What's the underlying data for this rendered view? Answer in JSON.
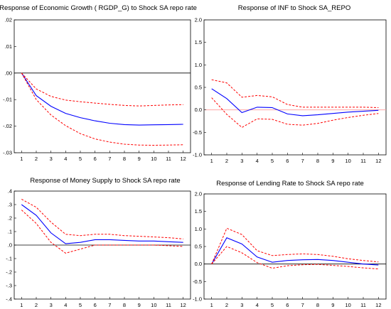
{
  "chart_data": [
    {
      "type": "line",
      "title": "Response of  Economic Growth ( RGDP_G)  to Shock SA repo rate",
      "xlabel": "",
      "ylabel": "",
      "x": [
        1,
        2,
        3,
        4,
        5,
        6,
        7,
        8,
        9,
        10,
        11,
        12
      ],
      "x_ticks": [
        "1",
        "2",
        "3",
        "4",
        "5",
        "6",
        "7",
        "8",
        "9",
        "10",
        "11",
        "12"
      ],
      "ylim": [
        -0.03,
        0.02
      ],
      "y_ticks": [
        ".02",
        ".01",
        ".00",
        "-.01",
        "-.02",
        "-.03"
      ],
      "grid": false,
      "legend": "none",
      "zero_line": 0,
      "series": [
        {
          "role": "response",
          "color": "#0000ff",
          "dash": false,
          "values": [
            0.0,
            -0.0085,
            -0.0125,
            -0.0152,
            -0.0168,
            -0.018,
            -0.0189,
            -0.0194,
            -0.0196,
            -0.0195,
            -0.0194,
            -0.0193
          ]
        },
        {
          "role": "upper",
          "color": "#ff0000",
          "dash": true,
          "values": [
            0.0,
            -0.006,
            -0.0088,
            -0.0102,
            -0.0108,
            -0.0113,
            -0.0118,
            -0.0122,
            -0.0124,
            -0.0122,
            -0.012,
            -0.0119
          ]
        },
        {
          "role": "lower",
          "color": "#ff0000",
          "dash": true,
          "values": [
            0.0,
            -0.01,
            -0.0158,
            -0.0198,
            -0.0228,
            -0.0248,
            -0.026,
            -0.0268,
            -0.0271,
            -0.0272,
            -0.0271,
            -0.027
          ]
        }
      ]
    },
    {
      "type": "line",
      "title": "Response of INF to Shock SA_REPO",
      "xlabel": "",
      "ylabel": "",
      "x": [
        1,
        2,
        3,
        4,
        5,
        6,
        7,
        8,
        9,
        10,
        11,
        12
      ],
      "x_ticks": [
        "1",
        "2",
        "3",
        "4",
        "5",
        "6",
        "7",
        "8",
        "9",
        "10",
        "11",
        "12"
      ],
      "ylim": [
        -1.0,
        2.0
      ],
      "y_ticks": [
        "2.0",
        "1.5",
        "1.0",
        "0.5",
        "0.0",
        "-0.5",
        "-1.0"
      ],
      "grid": false,
      "legend": "none",
      "zero_line": 0,
      "series": [
        {
          "role": "response",
          "color": "#0000ff",
          "dash": false,
          "values": [
            0.47,
            0.25,
            -0.06,
            0.06,
            0.05,
            -0.09,
            -0.13,
            -0.11,
            -0.08,
            -0.05,
            -0.03,
            -0.01
          ]
        },
        {
          "role": "upper",
          "color": "#ff0000",
          "dash": true,
          "values": [
            0.67,
            0.6,
            0.28,
            0.32,
            0.29,
            0.12,
            0.06,
            0.06,
            0.06,
            0.06,
            0.06,
            0.05
          ]
        },
        {
          "role": "lower",
          "color": "#ff0000",
          "dash": true,
          "values": [
            0.27,
            -0.1,
            -0.39,
            -0.2,
            -0.21,
            -0.32,
            -0.34,
            -0.3,
            -0.23,
            -0.17,
            -0.12,
            -0.08
          ]
        }
      ]
    },
    {
      "type": "line",
      "title": "Response of Money Supply to Shock SA repo rate",
      "xlabel": "",
      "ylabel": "",
      "x": [
        1,
        2,
        3,
        4,
        5,
        6,
        7,
        8,
        9,
        10,
        11,
        12
      ],
      "x_ticks": [
        "1",
        "2",
        "3",
        "4",
        "5",
        "6",
        "7",
        "8",
        "9",
        "10",
        "11",
        "12"
      ],
      "ylim": [
        -0.4,
        0.4
      ],
      "y_ticks": [
        ".4",
        ".3",
        ".2",
        ".1",
        ".0",
        "-.1",
        "-.2",
        "-.3",
        "-.4"
      ],
      "grid": false,
      "legend": "none",
      "zero_line": 0,
      "series": [
        {
          "role": "response",
          "color": "#0000ff",
          "dash": false,
          "values": [
            0.3,
            0.22,
            0.09,
            0.01,
            0.02,
            0.04,
            0.04,
            0.035,
            0.03,
            0.03,
            0.025,
            0.02
          ]
        },
        {
          "role": "upper",
          "color": "#ff0000",
          "dash": true,
          "values": [
            0.34,
            0.28,
            0.17,
            0.08,
            0.07,
            0.08,
            0.08,
            0.07,
            0.065,
            0.06,
            0.055,
            0.045
          ]
        },
        {
          "role": "lower",
          "color": "#ff0000",
          "dash": true,
          "values": [
            0.26,
            0.16,
            0.02,
            -0.06,
            -0.03,
            0.0,
            0.0,
            0.0,
            0.0,
            0.0,
            -0.005,
            -0.01
          ]
        }
      ]
    },
    {
      "type": "line",
      "title": "Response of Lending Rate  to Shock SA repo rate",
      "xlabel": "",
      "ylabel": "",
      "x": [
        1,
        2,
        3,
        4,
        5,
        6,
        7,
        8,
        9,
        10,
        11,
        12
      ],
      "x_ticks": [
        "1",
        "2",
        "3",
        "4",
        "5",
        "6",
        "7",
        "8",
        "9",
        "10",
        "11",
        "12"
      ],
      "ylim": [
        -1.0,
        2.0
      ],
      "y_ticks": [
        "2.0",
        "1.5",
        "1.0",
        "0.5",
        "0.0",
        "-0.5",
        "-1.0"
      ],
      "grid": false,
      "legend": "none",
      "zero_line": 0,
      "series": [
        {
          "role": "response",
          "color": "#0000ff",
          "dash": false,
          "values": [
            0.0,
            0.75,
            0.57,
            0.2,
            0.05,
            0.1,
            0.12,
            0.13,
            0.1,
            0.05,
            0.0,
            -0.03
          ]
        },
        {
          "role": "upper",
          "color": "#ff0000",
          "dash": true,
          "values": [
            0.0,
            1.02,
            0.84,
            0.38,
            0.24,
            0.27,
            0.29,
            0.27,
            0.22,
            0.15,
            0.1,
            0.06
          ]
        },
        {
          "role": "lower",
          "color": "#ff0000",
          "dash": true,
          "values": [
            0.0,
            0.5,
            0.32,
            0.04,
            -0.12,
            -0.05,
            -0.02,
            -0.01,
            -0.04,
            -0.07,
            -0.11,
            -0.14
          ]
        }
      ]
    }
  ]
}
